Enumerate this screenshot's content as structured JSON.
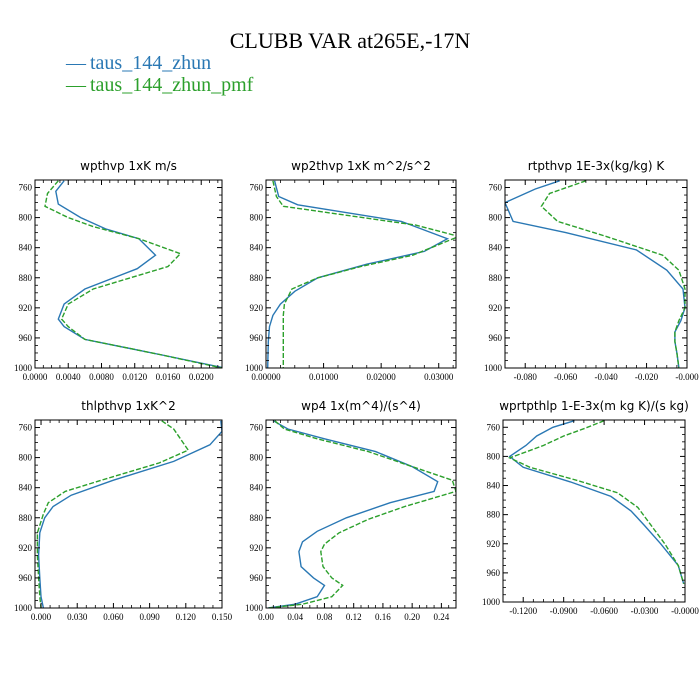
{
  "figure": {
    "title": "CLUBB VAR at265E,-17N",
    "colors": {
      "zhun": "#2a78b4",
      "pmf": "#2ca02c"
    }
  },
  "legend": [
    {
      "dash": "—",
      "label": "taus_144_zhun",
      "color": "#2a78b4",
      "style": "solid"
    },
    {
      "dash": "—",
      "label": "taus_144_zhun_pmf",
      "color": "#2ca02c",
      "style": "dashed"
    }
  ],
  "chart_data": [
    {
      "type": "line",
      "title": "wpthvp  1xK m/s",
      "xlim": [
        0.0,
        0.0225
      ],
      "xticks": [
        0.0,
        0.004,
        0.008,
        0.012,
        0.016,
        0.02
      ],
      "xticklabels": [
        "0.0000",
        "0.0040",
        "0.0080",
        "0.0120",
        "0.0160",
        "0.0200"
      ],
      "ylim": [
        1000,
        750
      ],
      "yticks": [
        760,
        800,
        840,
        880,
        920,
        960,
        1000
      ],
      "yticklabels": [
        "760",
        "800",
        "840",
        "880",
        "920",
        "960",
        "1000"
      ],
      "series": [
        {
          "name": "taus_144_zhun",
          "style": "solid",
          "x": [
            0.0035,
            0.0025,
            0.0028,
            0.0055,
            0.0085,
            0.0125,
            0.0145,
            0.0123,
            0.006,
            0.0035,
            0.0028,
            0.0035,
            0.006,
            0.015,
            0.0228
          ],
          "y": [
            751,
            765,
            782,
            800,
            815,
            828,
            850,
            868,
            895,
            915,
            935,
            945,
            962,
            982,
            1000
          ]
        },
        {
          "name": "taus_144_zhun_pmf",
          "style": "dashed",
          "x": [
            0.0028,
            0.0015,
            0.0012,
            0.004,
            0.007,
            0.0125,
            0.0175,
            0.016,
            0.007,
            0.004,
            0.0032,
            0.004,
            0.006,
            0.015,
            0.0225
          ],
          "y": [
            751,
            768,
            785,
            800,
            812,
            828,
            848,
            865,
            895,
            915,
            935,
            945,
            962,
            982,
            1000
          ]
        }
      ]
    },
    {
      "type": "line",
      "title": "wp2thvp  1xK m^2/s^2",
      "xlim": [
        0.0,
        0.033
      ],
      "xticks": [
        0.0,
        0.01,
        0.02,
        0.03
      ],
      "xticklabels": [
        "0.00000",
        "0.01000",
        "0.02000",
        "0.03000"
      ],
      "ylim": [
        1000,
        750
      ],
      "yticks": [
        760,
        800,
        840,
        880,
        920,
        960,
        1000
      ],
      "yticklabels": [
        "760",
        "800",
        "840",
        "880",
        "920",
        "960",
        "1000"
      ],
      "series": [
        {
          "name": "taus_144_zhun",
          "style": "solid",
          "x": [
            0.0015,
            0.0022,
            0.0055,
            0.0235,
            0.0315,
            0.0275,
            0.0175,
            0.009,
            0.005,
            0.0025,
            0.0012,
            0.0006,
            0.0004,
            0.0003
          ],
          "y": [
            751,
            772,
            783,
            805,
            828,
            845,
            862,
            880,
            898,
            915,
            930,
            945,
            965,
            1000
          ]
        },
        {
          "name": "taus_144_zhun_pmf",
          "style": "dashed",
          "x": [
            0.0012,
            0.0018,
            0.003,
            0.026,
            0.0335,
            0.0255,
            0.0165,
            0.009,
            0.0045,
            0.0032,
            0.003,
            0.003,
            0.003,
            0.003
          ],
          "y": [
            751,
            772,
            785,
            810,
            825,
            850,
            865,
            880,
            895,
            915,
            930,
            945,
            965,
            1000
          ]
        }
      ]
    },
    {
      "type": "line",
      "title": "rtpthvp  1E-3x(kg/kg) K",
      "xlim": [
        -0.09,
        0.0
      ],
      "xticks": [
        -0.08,
        -0.06,
        -0.04,
        -0.02,
        0.0
      ],
      "xticklabels": [
        "-0.080",
        "-0.060",
        "-0.040",
        "-0.020",
        "-0.000"
      ],
      "ylim": [
        1000,
        750
      ],
      "yticks": [
        760,
        800,
        840,
        880,
        920,
        960,
        1000
      ],
      "yticklabels": [
        "760",
        "800",
        "840",
        "880",
        "920",
        "960",
        "1000"
      ],
      "series": [
        {
          "name": "taus_144_zhun",
          "style": "solid",
          "x": [
            -0.063,
            -0.075,
            -0.09,
            -0.086,
            -0.06,
            -0.025,
            -0.01,
            -0.002,
            -0.001,
            -0.003,
            -0.006,
            -0.006,
            -0.005,
            -0.004
          ],
          "y": [
            751,
            762,
            780,
            805,
            820,
            843,
            870,
            895,
            920,
            937,
            952,
            965,
            980,
            1000
          ]
        },
        {
          "name": "taus_144_zhun_pmf",
          "style": "dashed",
          "x": [
            -0.05,
            -0.068,
            -0.072,
            -0.064,
            -0.04,
            -0.012,
            -0.004,
            -0.001,
            -0.001,
            -0.004,
            -0.006,
            -0.006,
            -0.005,
            -0.004
          ],
          "y": [
            751,
            768,
            785,
            805,
            825,
            850,
            870,
            895,
            920,
            937,
            952,
            965,
            980,
            1000
          ]
        }
      ]
    },
    {
      "type": "line",
      "title": "thlpthvp  1xK^2",
      "xlim": [
        -0.005,
        0.15
      ],
      "xticks": [
        0.0,
        0.03,
        0.06,
        0.09,
        0.12,
        0.15
      ],
      "xticklabels": [
        "0.000",
        "0.030",
        "0.060",
        "0.090",
        "0.120",
        "0.150"
      ],
      "ylim": [
        1000,
        750
      ],
      "yticks": [
        760,
        800,
        840,
        880,
        920,
        960,
        1000
      ],
      "yticklabels": [
        "760",
        "800",
        "840",
        "880",
        "920",
        "960",
        "1000"
      ],
      "series": [
        {
          "name": "taus_144_zhun",
          "style": "solid",
          "x": [
            0.149,
            0.15,
            0.14,
            0.11,
            0.06,
            0.025,
            0.01,
            0.003,
            -0.001,
            -0.002,
            -0.001,
            0.0,
            0.002
          ],
          "y": [
            751,
            765,
            783,
            805,
            830,
            850,
            865,
            880,
            900,
            930,
            960,
            985,
            1000
          ]
        },
        {
          "name": "taus_144_zhun_pmf",
          "style": "dashed",
          "x": [
            0.1,
            0.11,
            0.122,
            0.098,
            0.05,
            0.02,
            0.006,
            0.002,
            -0.003,
            -0.003,
            -0.002,
            -0.001,
            0.0
          ],
          "y": [
            751,
            762,
            790,
            807,
            830,
            845,
            860,
            875,
            900,
            930,
            960,
            985,
            1000
          ]
        }
      ]
    },
    {
      "type": "line",
      "title": "wp4  1x(m^4)/(s^4)",
      "xlim": [
        0.0,
        0.26
      ],
      "xticks": [
        0.0,
        0.04,
        0.08,
        0.12,
        0.16,
        0.2,
        0.24
      ],
      "xticklabels": [
        "0.00",
        "0.04",
        "0.08",
        "0.12",
        "0.16",
        "0.20",
        "0.24"
      ],
      "ylim": [
        1000,
        750
      ],
      "yticks": [
        760,
        800,
        840,
        880,
        920,
        960,
        1000
      ],
      "yticklabels": [
        "760",
        "800",
        "840",
        "880",
        "920",
        "960",
        "1000"
      ],
      "series": [
        {
          "name": "taus_144_zhun",
          "style": "solid",
          "x": [
            0.01,
            0.03,
            0.08,
            0.15,
            0.2,
            0.235,
            0.23,
            0.17,
            0.11,
            0.07,
            0.05,
            0.045,
            0.048,
            0.065,
            0.08,
            0.07,
            0.04,
            0.003
          ],
          "y": [
            751,
            762,
            775,
            792,
            812,
            832,
            845,
            860,
            880,
            898,
            912,
            925,
            945,
            960,
            970,
            985,
            995,
            1000
          ]
        },
        {
          "name": "taus_144_zhun_pmf",
          "style": "dashed",
          "x": [
            0.012,
            0.025,
            0.07,
            0.14,
            0.2,
            0.255,
            0.26,
            0.19,
            0.14,
            0.1,
            0.08,
            0.075,
            0.078,
            0.09,
            0.105,
            0.09,
            0.05,
            0.004
          ],
          "y": [
            751,
            762,
            775,
            792,
            812,
            830,
            845,
            865,
            882,
            900,
            915,
            925,
            945,
            960,
            970,
            985,
            995,
            1000
          ]
        }
      ]
    },
    {
      "type": "line",
      "title": "wprtpthlp  1-E-3x(m kg K)/(s kg)",
      "xlim": [
        -0.135,
        0.0
      ],
      "xticks": [
        -0.12,
        -0.09,
        -0.06,
        -0.03,
        0.0
      ],
      "xticklabels": [
        "-0.1200",
        "-0.0900",
        "-0.0600",
        "-0.0300",
        "-0.0000"
      ],
      "ylim": [
        1000,
        750
      ],
      "yticks": [
        760,
        800,
        840,
        880,
        920,
        960,
        1000
      ],
      "yticklabels": [
        "760",
        "800",
        "840",
        "880",
        "920",
        "960",
        "1000"
      ],
      "series": [
        {
          "name": "taus_144_zhun",
          "style": "solid",
          "x": [
            -0.082,
            -0.098,
            -0.11,
            -0.118,
            -0.13,
            -0.12,
            -0.085,
            -0.055,
            -0.04,
            -0.03,
            -0.018,
            -0.005,
            -0.001
          ],
          "y": [
            751,
            760,
            772,
            785,
            800,
            815,
            835,
            855,
            875,
            895,
            920,
            950,
            975
          ]
        },
        {
          "name": "taus_144_zhun_pmf",
          "style": "dashed",
          "x": [
            -0.06,
            -0.075,
            -0.09,
            -0.105,
            -0.13,
            -0.115,
            -0.08,
            -0.05,
            -0.035,
            -0.025,
            -0.015,
            -0.005,
            -0.001
          ],
          "y": [
            751,
            762,
            772,
            785,
            802,
            815,
            833,
            850,
            870,
            895,
            920,
            950,
            975
          ]
        }
      ]
    }
  ]
}
